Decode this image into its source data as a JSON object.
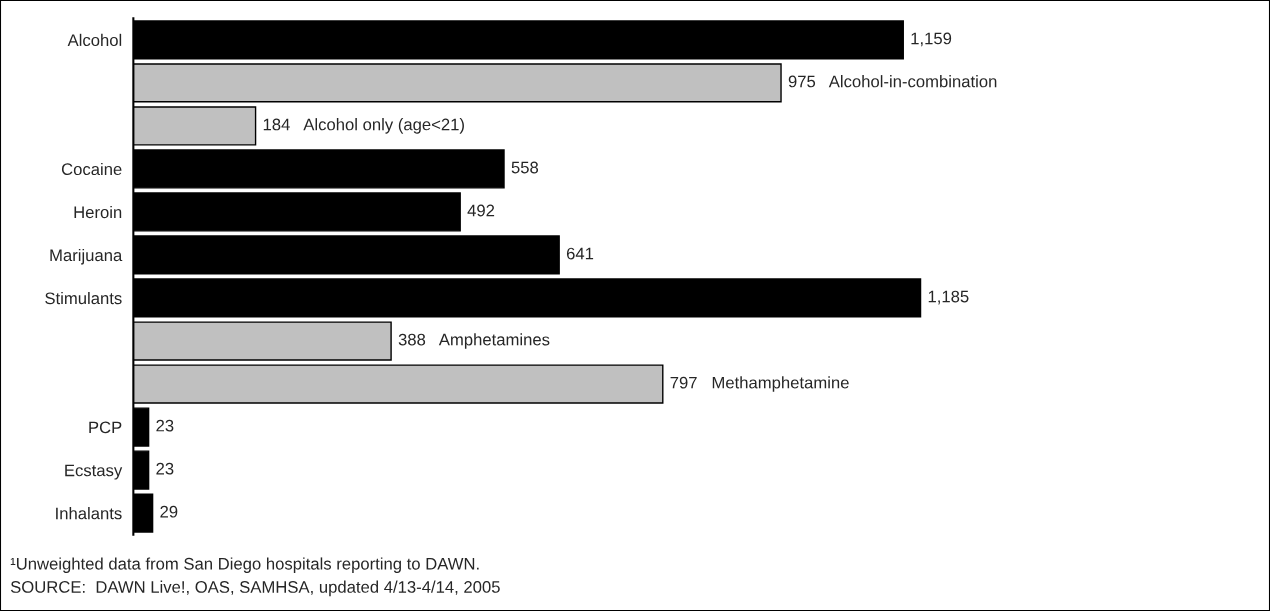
{
  "chart_data": {
    "type": "bar",
    "orientation": "horizontal",
    "categories": [
      "Alcohol",
      null,
      null,
      "Cocaine",
      "Heroin",
      "Marijuana",
      "Stimulants",
      null,
      null,
      "PCP",
      "Ecstasy",
      "Inhalants"
    ],
    "values": [
      1159,
      975,
      184,
      558,
      492,
      641,
      1185,
      388,
      797,
      23,
      23,
      29
    ],
    "colors": [
      "#000000",
      "#c0c0c0",
      "#c0c0c0",
      "#000000",
      "#000000",
      "#000000",
      "#000000",
      "#c0c0c0",
      "#c0c0c0",
      "#000000",
      "#000000",
      "#000000"
    ],
    "value_labels": [
      "1,159",
      "975   Alcohol-in-combination",
      "184   Alcohol only (age<21)",
      "558",
      "492",
      "641",
      "1,185",
      "388   Amphetamines",
      "797   Methamphetamine",
      "23",
      "23",
      "29"
    ],
    "annotations": [
      "¹Unweighted data from San Diego hospitals reporting to DAWN.",
      "SOURCE:  DAWN Live!, OAS, SAMHSA, updated 4/13-4/14, 2005"
    ]
  }
}
